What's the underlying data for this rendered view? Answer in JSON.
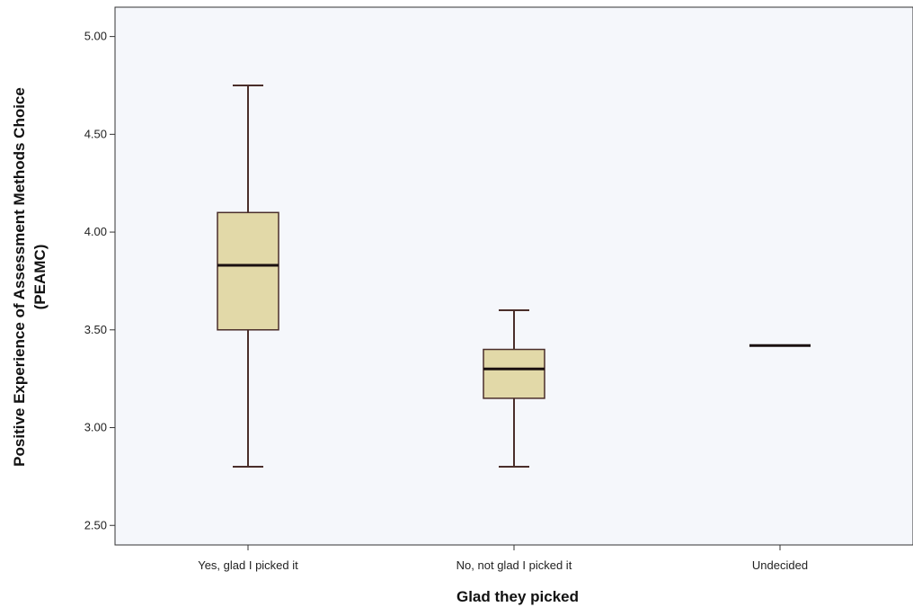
{
  "chart_data": {
    "type": "boxplot",
    "title": "",
    "xlabel": "Glad they picked",
    "ylabel_lines": [
      "Positive Experience of Assessment Methods Choice",
      "(PEAMC)"
    ],
    "ylim": [
      2.4,
      5.15
    ],
    "yticks": [
      "2.50",
      "3.00",
      "3.50",
      "4.00",
      "4.50",
      "5.00"
    ],
    "categories": [
      "Yes, glad I picked it",
      "No, not glad I picked it",
      "Undecided"
    ],
    "boxes": [
      {
        "min": 2.8,
        "q1": 3.5,
        "median": 3.83,
        "q3": 4.1,
        "max": 4.75
      },
      {
        "min": 2.8,
        "q1": 3.15,
        "median": 3.3,
        "q3": 3.4,
        "max": 3.6
      },
      {
        "min": 3.42,
        "q1": 3.42,
        "median": 3.42,
        "q3": 3.42,
        "max": 3.42
      }
    ],
    "grid": false,
    "colors": {
      "plot_bg": "#f5f7fb",
      "box_fill": "#e2d9a8",
      "line": "#4a2e2a",
      "axis": "#333333"
    }
  }
}
